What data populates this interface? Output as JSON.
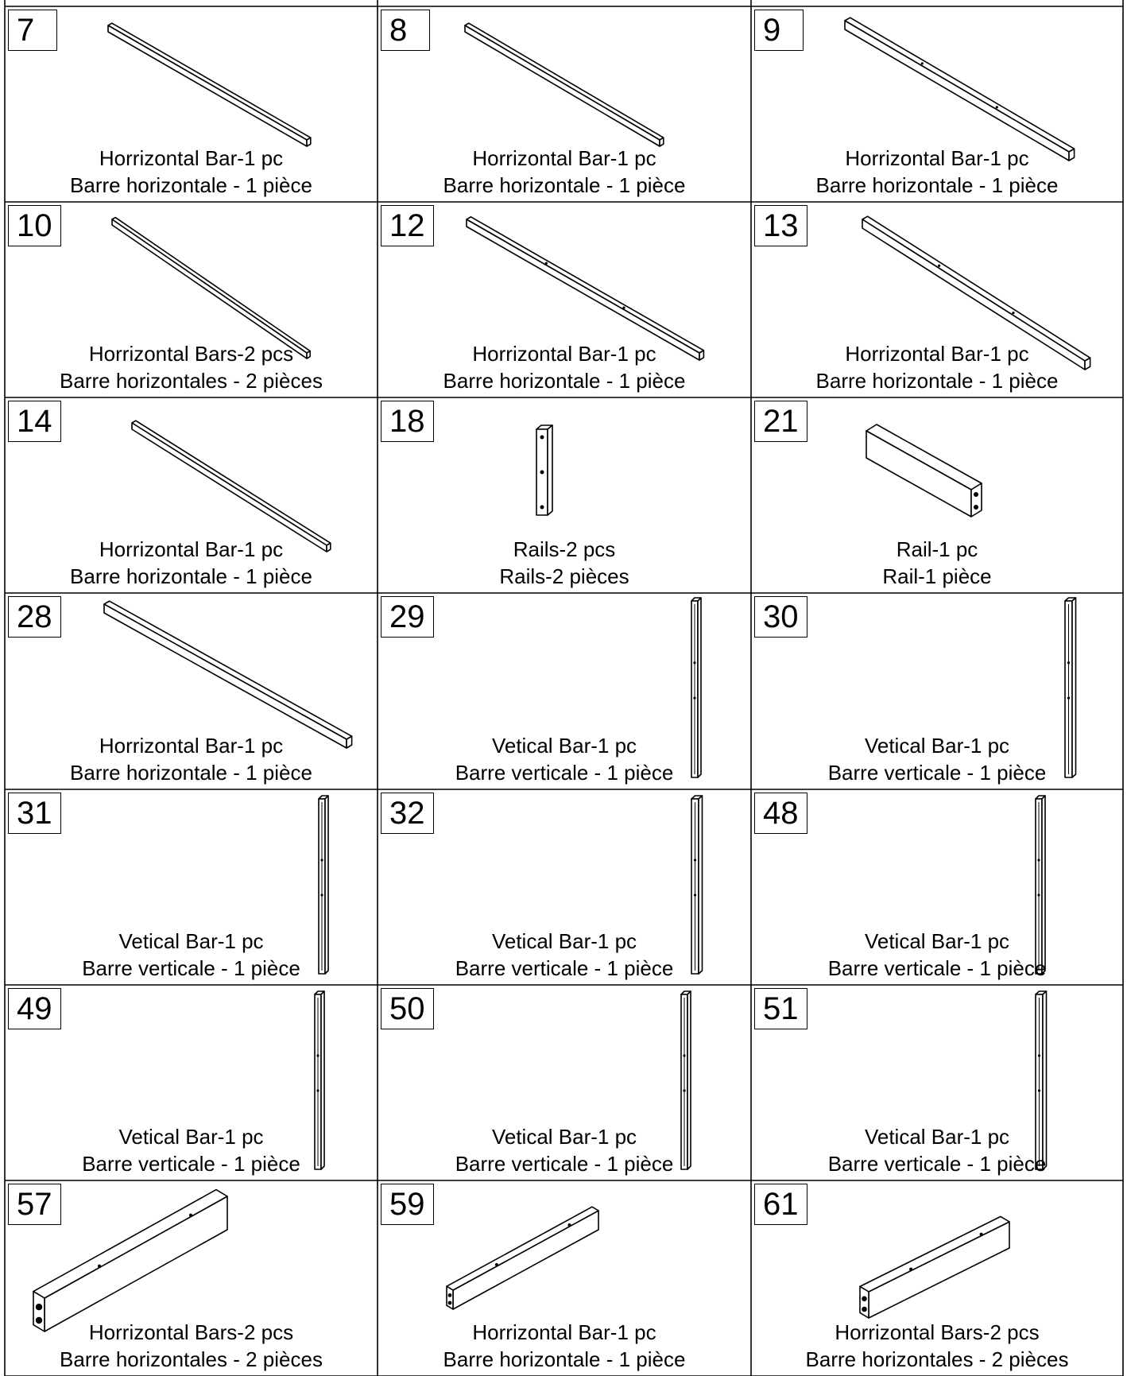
{
  "parts": [
    {
      "number": "7",
      "shape": "bar-down",
      "caption_en": "Horrizontal Bar-1 pc",
      "caption_fr": "Barre horizontale - 1 pièce"
    },
    {
      "number": "8",
      "shape": "bar-down",
      "caption_en": "Horrizontal Bar-1 pc",
      "caption_fr": "Barre horizontale - 1 pièce"
    },
    {
      "number": "9",
      "shape": "bar-down",
      "caption_en": "Horrizontal Bar-1 pc",
      "caption_fr": "Barre horizontale - 1 pièce"
    },
    {
      "number": "10",
      "shape": "bar-down",
      "caption_en": "Horrizontal Bars-2 pcs",
      "caption_fr": "Barre horizontales - 2 pièces"
    },
    {
      "number": "12",
      "shape": "bar-down",
      "caption_en": "Horrizontal Bar-1 pc",
      "caption_fr": "Barre horizontale - 1 pièce"
    },
    {
      "number": "13",
      "shape": "bar-down",
      "caption_en": "Horrizontal Bar-1 pc",
      "caption_fr": "Barre horizontale - 1 pièce"
    },
    {
      "number": "14",
      "shape": "bar-down",
      "caption_en": "Horrizontal Bar-1 pc",
      "caption_fr": "Barre horizontale - 1 pièce"
    },
    {
      "number": "18",
      "shape": "short-post",
      "caption_en": "Rails-2 pcs",
      "caption_fr": "Rails-2 pièces"
    },
    {
      "number": "21",
      "shape": "short-rail",
      "caption_en": "Rail-1 pc",
      "caption_fr": "Rail-1 pièce"
    },
    {
      "number": "28",
      "shape": "bar-down",
      "caption_en": "Horrizontal Bar-1 pc",
      "caption_fr": "Barre horizontale - 1 pièce"
    },
    {
      "number": "29",
      "shape": "vertical",
      "caption_en": "Vetical Bar-1 pc",
      "caption_fr": "Barre verticale - 1 pièce"
    },
    {
      "number": "30",
      "shape": "vertical",
      "caption_en": "Vetical Bar-1 pc",
      "caption_fr": "Barre verticale - 1 pièce"
    },
    {
      "number": "31",
      "shape": "vertical",
      "caption_en": "Vetical Bar-1 pc",
      "caption_fr": "Barre verticale - 1 pièce"
    },
    {
      "number": "32",
      "shape": "vertical",
      "caption_en": "Vetical Bar-1 pc",
      "caption_fr": "Barre verticale - 1 pièce"
    },
    {
      "number": "48",
      "shape": "vertical",
      "caption_en": "Vetical Bar-1 pc",
      "caption_fr": "Barre verticale - 1 pièce"
    },
    {
      "number": "49",
      "shape": "vertical",
      "caption_en": "Vetical Bar-1 pc",
      "caption_fr": "Barre verticale - 1 pièce"
    },
    {
      "number": "50",
      "shape": "vertical",
      "caption_en": "Vetical Bar-1 pc",
      "caption_fr": "Barre verticale - 1 pièce"
    },
    {
      "number": "51",
      "shape": "vertical",
      "caption_en": "Vetical Bar-1 pc",
      "caption_fr": "Barre verticale - 1 pièce"
    },
    {
      "number": "57",
      "shape": "beam-up",
      "caption_en": "Horrizontal Bars-2 pcs",
      "caption_fr": "Barre horizontales - 2 pièces"
    },
    {
      "number": "59",
      "shape": "beam-up",
      "caption_en": "Horrizontal Bar-1 pc",
      "caption_fr": "Barre horizontale - 1 pièce"
    },
    {
      "number": "61",
      "shape": "beam-up",
      "caption_en": "Horrizontal Bars-2 pcs",
      "caption_fr": "Barre horizontales - 2 pièces"
    }
  ]
}
